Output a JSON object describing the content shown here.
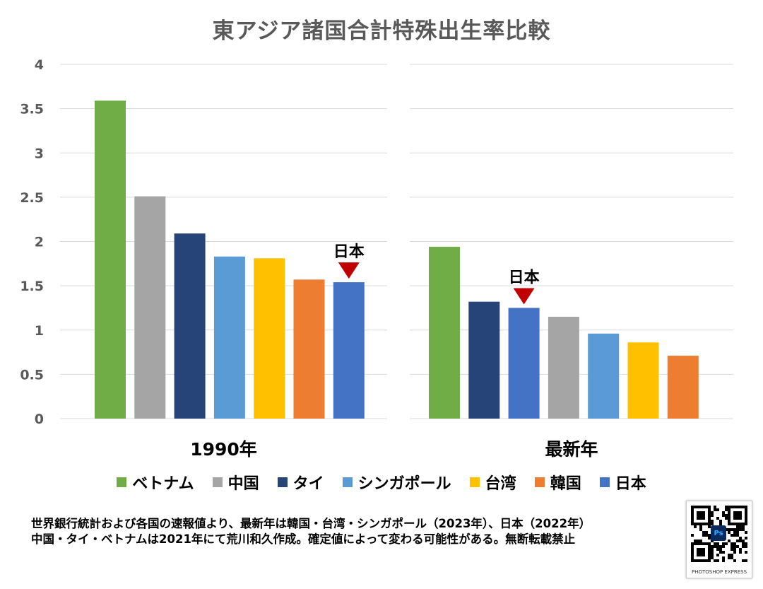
{
  "title": "東アジア諸国合計特殊出生率比較",
  "chart_data": {
    "type": "bar",
    "y_ticks": [
      "0",
      "0.5",
      "1",
      "1.5",
      "2",
      "2.5",
      "3",
      "3.5",
      "4"
    ],
    "ylim": [
      0,
      4
    ],
    "grid": true,
    "legend_position": "bottom",
    "groups": [
      {
        "label": "1990年",
        "bars": [
          {
            "country": "ベトナム",
            "value": 3.59,
            "color": "#70ad47"
          },
          {
            "country": "中国",
            "value": 2.51,
            "color": "#a5a5a5"
          },
          {
            "country": "タイ",
            "value": 2.09,
            "color": "#264478"
          },
          {
            "country": "シンガポール",
            "value": 1.83,
            "color": "#5b9bd5"
          },
          {
            "country": "台湾",
            "value": 1.81,
            "color": "#ffc000"
          },
          {
            "country": "韓国",
            "value": 1.57,
            "color": "#ed7d31"
          },
          {
            "country": "日本",
            "value": 1.54,
            "color": "#4472c4"
          }
        ],
        "marker": {
          "label": "日本",
          "target_index": 6
        }
      },
      {
        "label": "最新年",
        "bars": [
          {
            "country": "ベトナム",
            "value": 1.94,
            "color": "#70ad47"
          },
          {
            "country": "タイ",
            "value": 1.32,
            "color": "#264478"
          },
          {
            "country": "日本",
            "value": 1.25,
            "color": "#4472c4"
          },
          {
            "country": "中国",
            "value": 1.15,
            "color": "#a5a5a5"
          },
          {
            "country": "シンガポール",
            "value": 0.96,
            "color": "#5b9bd5"
          },
          {
            "country": "台湾",
            "value": 0.86,
            "color": "#ffc000"
          },
          {
            "country": "韓国",
            "value": 0.71,
            "color": "#ed7d31"
          }
        ],
        "marker": {
          "label": "日本",
          "target_index": 2
        }
      }
    ],
    "legend": [
      {
        "label": "ベトナム",
        "color": "#70ad47"
      },
      {
        "label": "中国",
        "color": "#a5a5a5"
      },
      {
        "label": "タイ",
        "color": "#264478"
      },
      {
        "label": "シンガポール",
        "color": "#5b9bd5"
      },
      {
        "label": "台湾",
        "color": "#ffc000"
      },
      {
        "label": "韓国",
        "color": "#ed7d31"
      },
      {
        "label": "日本",
        "color": "#4472c4"
      }
    ],
    "marker_color": "#c00000"
  },
  "note": {
    "line1": "世界銀行統計および各国の速報値より、最新年は韓国・台湾・シンガポール（2023年）、日本（2022年）",
    "line2": "中国・タイ・ベトナムは2021年にて荒川和久作成。確定値によって変わる可能性がある。無断転載禁止"
  },
  "qr_badge": {
    "app_label": "PHOTOSHOP EXPRESS",
    "icon_text": "Ps"
  }
}
